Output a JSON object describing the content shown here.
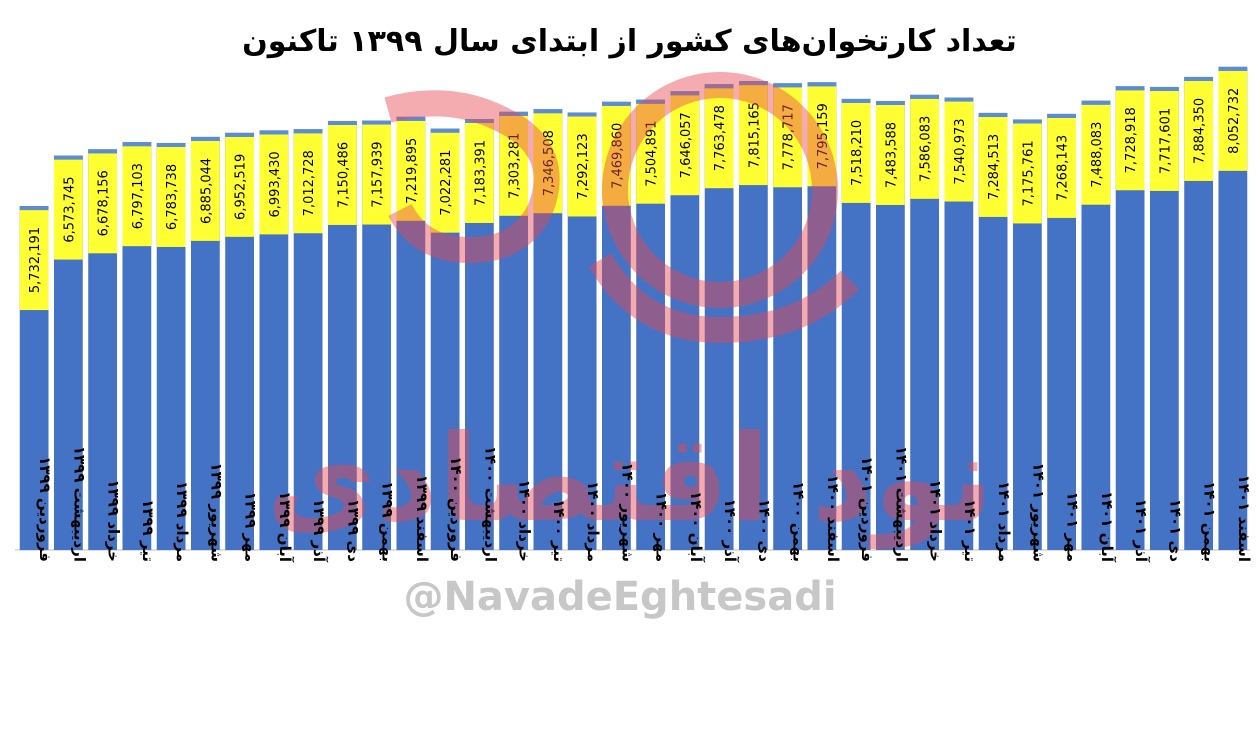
{
  "chart_data": {
    "type": "bar",
    "title": "تعداد کارتخوان‌های کشور از ابتدای سال ۱۳۹۹ تاکنون",
    "categories": [
      "فروردین ۱۳۹۹",
      "اردیبهشت ۱۳۹۹",
      "خرداد ۱۳۹۹",
      "تیر ۱۳۹۹",
      "مرداد ۱۳۹۹",
      "شهریور ۱۳۹۹",
      "مهر ۱۳۹۹",
      "آبان ۱۳۹۹",
      "آذر ۱۳۹۹",
      "دی ۱۳۹۹",
      "بهمن ۱۳۹۹",
      "اسفند ۱۳۹۹",
      "فروردین ۱۴۰۰",
      "اردیبهشت ۱۴۰۰",
      "خرداد ۱۴۰۰",
      "تیر ۱۴۰۰",
      "مرداد ۱۴۰۰",
      "شهریور ۱۴۰۰",
      "مهر ۱۴۰۰",
      "آبان ۱۴۰۰",
      "آذر ۱۴۰۰",
      "دی ۱۴۰۰",
      "بهمن ۱۴۰۰",
      "اسفند ۱۴۰۰",
      "فروردین ۱۴۰۱",
      "اردیبهشت ۱۴۰۱",
      "خرداد ۱۴۰۱",
      "تیر ۱۴۰۱",
      "مرداد ۱۴۰۱",
      "شهریور ۱۴۰۱",
      "مهر ۱۴۰۱",
      "آبان ۱۴۰۱",
      "آذر ۱۴۰۱",
      "دی ۱۴۰۱",
      "بهمن ۱۴۰۱",
      "اسفند ۱۴۰۱"
    ],
    "values": [
      5732191,
      6573745,
      6678156,
      6797103,
      6783738,
      6885044,
      6952519,
      6993430,
      7012728,
      7150486,
      7157939,
      7219895,
      7022281,
      7183391,
      7303281,
      7346508,
      7292123,
      7469860,
      7504891,
      7646057,
      7763478,
      7815165,
      7778717,
      7795159,
      7518210,
      7483588,
      7586083,
      7540973,
      7284513,
      7175761,
      7268143,
      7488083,
      7728918,
      7717601,
      7884350,
      8052732
    ],
    "value_labels": [
      "5,732,191",
      "6,573,745",
      "6,678,156",
      "6,797,103",
      "6,783,738",
      "6,885,044",
      "6,952,519",
      "6,993,430",
      "7,012,728",
      "7,150,486",
      "7,157,939",
      "7,219,895",
      "7,022,281",
      "7,183,391",
      "7,303,281",
      "7,346,508",
      "7,292,123",
      "7,469,860",
      "7,504,891",
      "7,646,057",
      "7,763,478",
      "7,815,165",
      "7,778,717",
      "7,795,159",
      "7,518,210",
      "7,483,588",
      "7,586,083",
      "7,540,973",
      "7,284,513",
      "7,175,761",
      "7,268,143",
      "7,488,083",
      "7,728,918",
      "7,717,601",
      "7,884,350",
      "8,052,732"
    ],
    "ylim": [
      0,
      8200000
    ],
    "grid": false,
    "legend": "none",
    "colors": {
      "bar": "#4472C4",
      "label_band": "#FFFF33",
      "top_cap": "#5B8DD6"
    }
  },
  "watermark": {
    "logo_text": "نود اقتصادی",
    "handle": "@NavadeEghtesadi",
    "color": "#E8474F"
  }
}
